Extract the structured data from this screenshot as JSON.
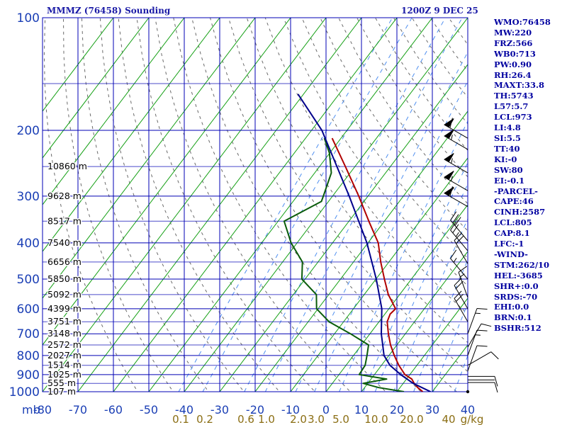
{
  "header": {
    "station": "MMMZ (76458) Sounding",
    "time": "1200Z  9 DEC 25"
  },
  "indices": [
    "WMO:76458",
    "MW:220",
    "FRZ:566",
    "WB0:713",
    "PW:0.90",
    "RH:26.4",
    "MAXT:33.8",
    "TH:5743",
    "L57:5.7",
    "LCL:973",
    "LI:4.8",
    "SI:5.5",
    "TT:40",
    "KI:-0",
    "SW:80",
    "EI:-0.1",
    "-PARCEL-",
    "CAPE:46",
    "CINH:2587",
    "LCL:805",
    "CAP:8.1",
    "LFC:-1",
    "-WIND-",
    "STM:262/10",
    "HEL:-3685",
    "SHR+:0.0",
    "SRDS:-70",
    "EHI:0.0",
    "BRN:0.1",
    "BSHR:512"
  ],
  "chart_data": {
    "type": "line",
    "subtype": "skew-T log-P sounding",
    "xlabel": "",
    "ylabel": "mb",
    "pressure_axis": {
      "range": [
        1000,
        100
      ],
      "scale": "log",
      "ticks": [
        100,
        200,
        300,
        400,
        500,
        600,
        700,
        800,
        900,
        1000
      ]
    },
    "temperature_axis": {
      "range": [
        -80,
        40
      ],
      "ticks": [
        -80,
        -70,
        -60,
        -50,
        -40,
        -30,
        -20,
        -10,
        0,
        10,
        20,
        30,
        40
      ],
      "tick_labels": [
        "-80",
        "-70",
        "-60",
        "-50",
        "-40",
        "-30",
        "-20",
        "-10",
        "0",
        "10",
        "20",
        "30",
        "40"
      ]
    },
    "mixing_ratio_labels": [
      "0.1",
      "0.2",
      "0.6",
      "1.0",
      "2.0",
      "3.0",
      "5.0",
      "10.0",
      "20.0",
      "40",
      "g/kg"
    ],
    "height_labels": [
      {
        "p": 1000,
        "label": "107 m"
      },
      {
        "p": 950,
        "label": "555 m"
      },
      {
        "p": 900,
        "label": "1025 m"
      },
      {
        "p": 850,
        "label": "1514 m"
      },
      {
        "p": 800,
        "label": "2027 m"
      },
      {
        "p": 750,
        "label": "2572 m"
      },
      {
        "p": 700,
        "label": "3148 m"
      },
      {
        "p": 650,
        "label": "3751 m"
      },
      {
        "p": 600,
        "label": "4399 m"
      },
      {
        "p": 550,
        "label": "5092 m"
      },
      {
        "p": 500,
        "label": "5850 m"
      },
      {
        "p": 450,
        "label": "6656 m"
      },
      {
        "p": 400,
        "label": "7540 m"
      },
      {
        "p": 350,
        "label": "8517 m"
      },
      {
        "p": 300,
        "label": "9628 m"
      },
      {
        "p": 250,
        "label": "10860 m"
      }
    ],
    "series": [
      {
        "color": "#b00000",
        "points": [
          {
            "p": 1000,
            "t": 27.3
          },
          {
            "p": 975,
            "t": 25.0
          },
          {
            "p": 950,
            "t": 23.1
          },
          {
            "p": 925,
            "t": 21.5
          },
          {
            "p": 900,
            "t": 18.6
          },
          {
            "p": 850,
            "t": 14.9
          },
          {
            "p": 800,
            "t": 11.5
          },
          {
            "p": 750,
            "t": 8.2
          },
          {
            "p": 700,
            "t": 5.2
          },
          {
            "p": 650,
            "t": 2.3
          },
          {
            "p": 620,
            "t": 1.5
          },
          {
            "p": 600,
            "t": 1.9
          },
          {
            "p": 550,
            "t": -3.2
          },
          {
            "p": 500,
            "t": -7.6
          },
          {
            "p": 450,
            "t": -12.3
          },
          {
            "p": 400,
            "t": -17.1
          },
          {
            "p": 350,
            "t": -24.4
          },
          {
            "p": 300,
            "t": -32.6
          },
          {
            "p": 250,
            "t": -42.7
          },
          {
            "p": 210,
            "t": -52.5
          }
        ]
      },
      {
        "color": "#0a5c0a",
        "points": [
          {
            "p": 1000,
            "t": 22.0
          },
          {
            "p": 975,
            "t": 14.0
          },
          {
            "p": 950,
            "t": 8.7
          },
          {
            "p": 925,
            "t": 14.4
          },
          {
            "p": 900,
            "t": 5.7
          },
          {
            "p": 850,
            "t": 5.4
          },
          {
            "p": 800,
            "t": 3.8
          },
          {
            "p": 750,
            "t": 2.0
          },
          {
            "p": 700,
            "t": -5.5
          },
          {
            "p": 650,
            "t": -14.1
          },
          {
            "p": 600,
            "t": -20.4
          },
          {
            "p": 550,
            "t": -23.5
          },
          {
            "p": 500,
            "t": -30.9
          },
          {
            "p": 450,
            "t": -34.4
          },
          {
            "p": 400,
            "t": -41.7
          },
          {
            "p": 350,
            "t": -48.3
          },
          {
            "p": 310,
            "t": -42.0
          },
          {
            "p": 300,
            "t": -42.6
          },
          {
            "p": 260,
            "t": -45.3
          },
          {
            "p": 230,
            "t": -50.1
          },
          {
            "p": 210,
            "t": -54.7
          }
        ]
      },
      {
        "color": "#00008b",
        "points": [
          {
            "p": 1000,
            "t": 29.5
          },
          {
            "p": 950,
            "t": 22.8
          },
          {
            "p": 900,
            "t": 17.4
          },
          {
            "p": 850,
            "t": 12.4
          },
          {
            "p": 800,
            "t": 8.6
          },
          {
            "p": 750,
            "t": 6.0
          },
          {
            "p": 700,
            "t": 3.2
          },
          {
            "p": 600,
            "t": -2.0
          },
          {
            "p": 500,
            "t": -9.9
          },
          {
            "p": 400,
            "t": -20.3
          },
          {
            "p": 300,
            "t": -35.3
          },
          {
            "p": 200,
            "t": -57.1
          },
          {
            "p": 160,
            "t": -71.6
          }
        ]
      }
    ],
    "winds_kt": [
      {
        "p": 210,
        "dir": 300,
        "spd": 60
      },
      {
        "p": 225,
        "dir": 300,
        "spd": 55
      },
      {
        "p": 260,
        "dir": 300,
        "spd": 55
      },
      {
        "p": 290,
        "dir": 300,
        "spd": 55
      },
      {
        "p": 320,
        "dir": 300,
        "spd": 60
      },
      {
        "p": 395,
        "dir": 320,
        "spd": 30
      },
      {
        "p": 420,
        "dir": 320,
        "spd": 25
      },
      {
        "p": 455,
        "dir": 330,
        "spd": 20
      },
      {
        "p": 500,
        "dir": 320,
        "spd": 15
      },
      {
        "p": 560,
        "dir": 340,
        "spd": 15
      },
      {
        "p": 600,
        "dir": 330,
        "spd": 20
      },
      {
        "p": 650,
        "dir": 330,
        "spd": 20
      },
      {
        "p": 700,
        "dir": 20,
        "spd": 15
      },
      {
        "p": 760,
        "dir": 30,
        "spd": 10
      },
      {
        "p": 800,
        "dir": 20,
        "spd": 15
      },
      {
        "p": 850,
        "dir": 60,
        "spd": 10
      },
      {
        "p": 880,
        "dir": 20,
        "spd": 10
      },
      {
        "p": 910,
        "dir": 90,
        "spd": 10
      },
      {
        "p": 945,
        "dir": 90,
        "spd": 10
      },
      {
        "p": 1000,
        "dir": 0,
        "spd": 0
      }
    ],
    "grid": true
  }
}
